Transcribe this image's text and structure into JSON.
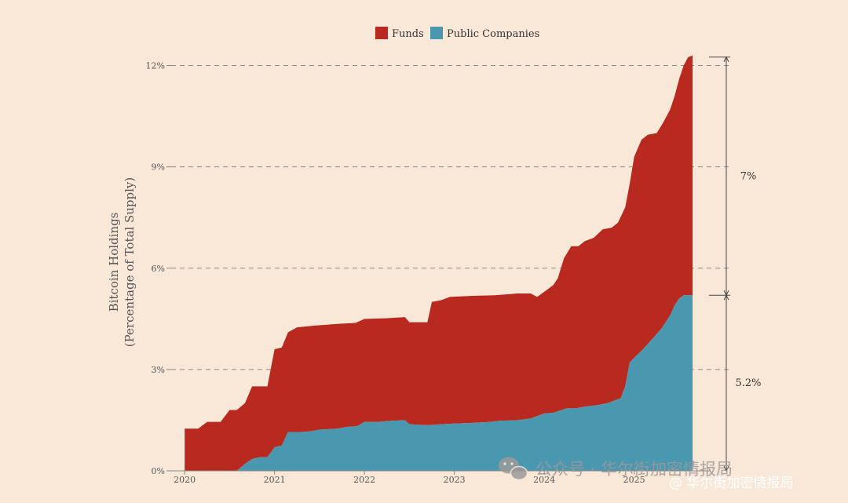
{
  "chart_data": {
    "type": "area",
    "stacked": true,
    "ylabel_lines": [
      "Bitcoin Holdings",
      "(Percentage of Total Supply)"
    ],
    "ylim": [
      0,
      12.5
    ],
    "yticks": [
      0,
      3,
      6,
      9,
      12
    ],
    "ytick_labels": [
      "0%",
      "3%",
      "6%",
      "9%",
      "12%"
    ],
    "xlim": [
      2019.85,
      2025.85
    ],
    "xticks": [
      2020,
      2021,
      2022,
      2023,
      2024,
      2025
    ],
    "xtick_labels": [
      "2020",
      "2021",
      "2022",
      "2023",
      "2024",
      "2025"
    ],
    "grid": "horizontal dashed",
    "legend_placement": "top-center",
    "series": [
      {
        "name": "Public Companies",
        "color": "#4a98b0",
        "points": [
          [
            2020.0,
            0
          ],
          [
            2020.58,
            0
          ],
          [
            2020.6,
            0.05
          ],
          [
            2020.67,
            0.2
          ],
          [
            2020.75,
            0.35
          ],
          [
            2020.83,
            0.4
          ],
          [
            2020.92,
            0.4
          ],
          [
            2021.0,
            0.7
          ],
          [
            2021.08,
            0.75
          ],
          [
            2021.15,
            1.15
          ],
          [
            2021.3,
            1.15
          ],
          [
            2021.4,
            1.17
          ],
          [
            2021.5,
            1.22
          ],
          [
            2021.7,
            1.25
          ],
          [
            2021.8,
            1.3
          ],
          [
            2021.92,
            1.32
          ],
          [
            2022.0,
            1.45
          ],
          [
            2022.15,
            1.45
          ],
          [
            2022.3,
            1.48
          ],
          [
            2022.45,
            1.5
          ],
          [
            2022.5,
            1.38
          ],
          [
            2022.7,
            1.35
          ],
          [
            2022.85,
            1.38
          ],
          [
            2023.0,
            1.4
          ],
          [
            2023.2,
            1.42
          ],
          [
            2023.4,
            1.45
          ],
          [
            2023.5,
            1.48
          ],
          [
            2023.7,
            1.5
          ],
          [
            2023.85,
            1.55
          ],
          [
            2024.0,
            1.7
          ],
          [
            2024.1,
            1.72
          ],
          [
            2024.25,
            1.85
          ],
          [
            2024.35,
            1.85
          ],
          [
            2024.45,
            1.9
          ],
          [
            2024.6,
            1.95
          ],
          [
            2024.7,
            2.0
          ],
          [
            2024.8,
            2.1
          ],
          [
            2024.85,
            2.15
          ],
          [
            2024.9,
            2.5
          ],
          [
            2024.95,
            3.2
          ],
          [
            2025.0,
            3.35
          ],
          [
            2025.1,
            3.6
          ],
          [
            2025.2,
            3.9
          ],
          [
            2025.3,
            4.2
          ],
          [
            2025.4,
            4.6
          ],
          [
            2025.45,
            4.9
          ],
          [
            2025.5,
            5.1
          ],
          [
            2025.55,
            5.2
          ],
          [
            2025.58,
            5.2
          ]
        ]
      },
      {
        "name": "Funds",
        "color": "#b82a20",
        "total_points": [
          [
            2020.0,
            1.25
          ],
          [
            2020.15,
            1.25
          ],
          [
            2020.25,
            1.45
          ],
          [
            2020.4,
            1.45
          ],
          [
            2020.5,
            1.8
          ],
          [
            2020.58,
            1.8
          ],
          [
            2020.67,
            2.0
          ],
          [
            2020.75,
            2.5
          ],
          [
            2020.92,
            2.5
          ],
          [
            2021.0,
            3.6
          ],
          [
            2021.08,
            3.65
          ],
          [
            2021.15,
            4.1
          ],
          [
            2021.25,
            4.25
          ],
          [
            2021.45,
            4.3
          ],
          [
            2021.7,
            4.35
          ],
          [
            2021.9,
            4.38
          ],
          [
            2022.0,
            4.5
          ],
          [
            2022.25,
            4.52
          ],
          [
            2022.45,
            4.55
          ],
          [
            2022.5,
            4.4
          ],
          [
            2022.7,
            4.4
          ],
          [
            2022.75,
            5.0
          ],
          [
            2022.85,
            5.05
          ],
          [
            2022.95,
            5.15
          ],
          [
            2023.2,
            5.18
          ],
          [
            2023.45,
            5.2
          ],
          [
            2023.55,
            5.22
          ],
          [
            2023.7,
            5.25
          ],
          [
            2023.85,
            5.25
          ],
          [
            2023.92,
            5.15
          ],
          [
            2024.0,
            5.3
          ],
          [
            2024.1,
            5.5
          ],
          [
            2024.15,
            5.7
          ],
          [
            2024.22,
            6.3
          ],
          [
            2024.3,
            6.65
          ],
          [
            2024.38,
            6.65
          ],
          [
            2024.45,
            6.8
          ],
          [
            2024.55,
            6.9
          ],
          [
            2024.65,
            7.15
          ],
          [
            2024.75,
            7.2
          ],
          [
            2024.82,
            7.35
          ],
          [
            2024.9,
            7.8
          ],
          [
            2024.95,
            8.5
          ],
          [
            2025.0,
            9.3
          ],
          [
            2025.08,
            9.8
          ],
          [
            2025.15,
            9.95
          ],
          [
            2025.25,
            10.0
          ],
          [
            2025.32,
            10.3
          ],
          [
            2025.4,
            10.7
          ],
          [
            2025.45,
            11.1
          ],
          [
            2025.5,
            11.6
          ],
          [
            2025.55,
            12.0
          ],
          [
            2025.6,
            12.25
          ],
          [
            2025.65,
            12.3
          ]
        ]
      }
    ],
    "annotations": [
      {
        "label": "7%",
        "from": 5.2,
        "to": 12.25
      },
      {
        "label": "5.2%",
        "from": 0,
        "to": 5.2
      }
    ]
  },
  "watermark": {
    "line1": "公众号 · 华尔街加密情报局",
    "line2": "@ 华尔街加密情报局"
  }
}
